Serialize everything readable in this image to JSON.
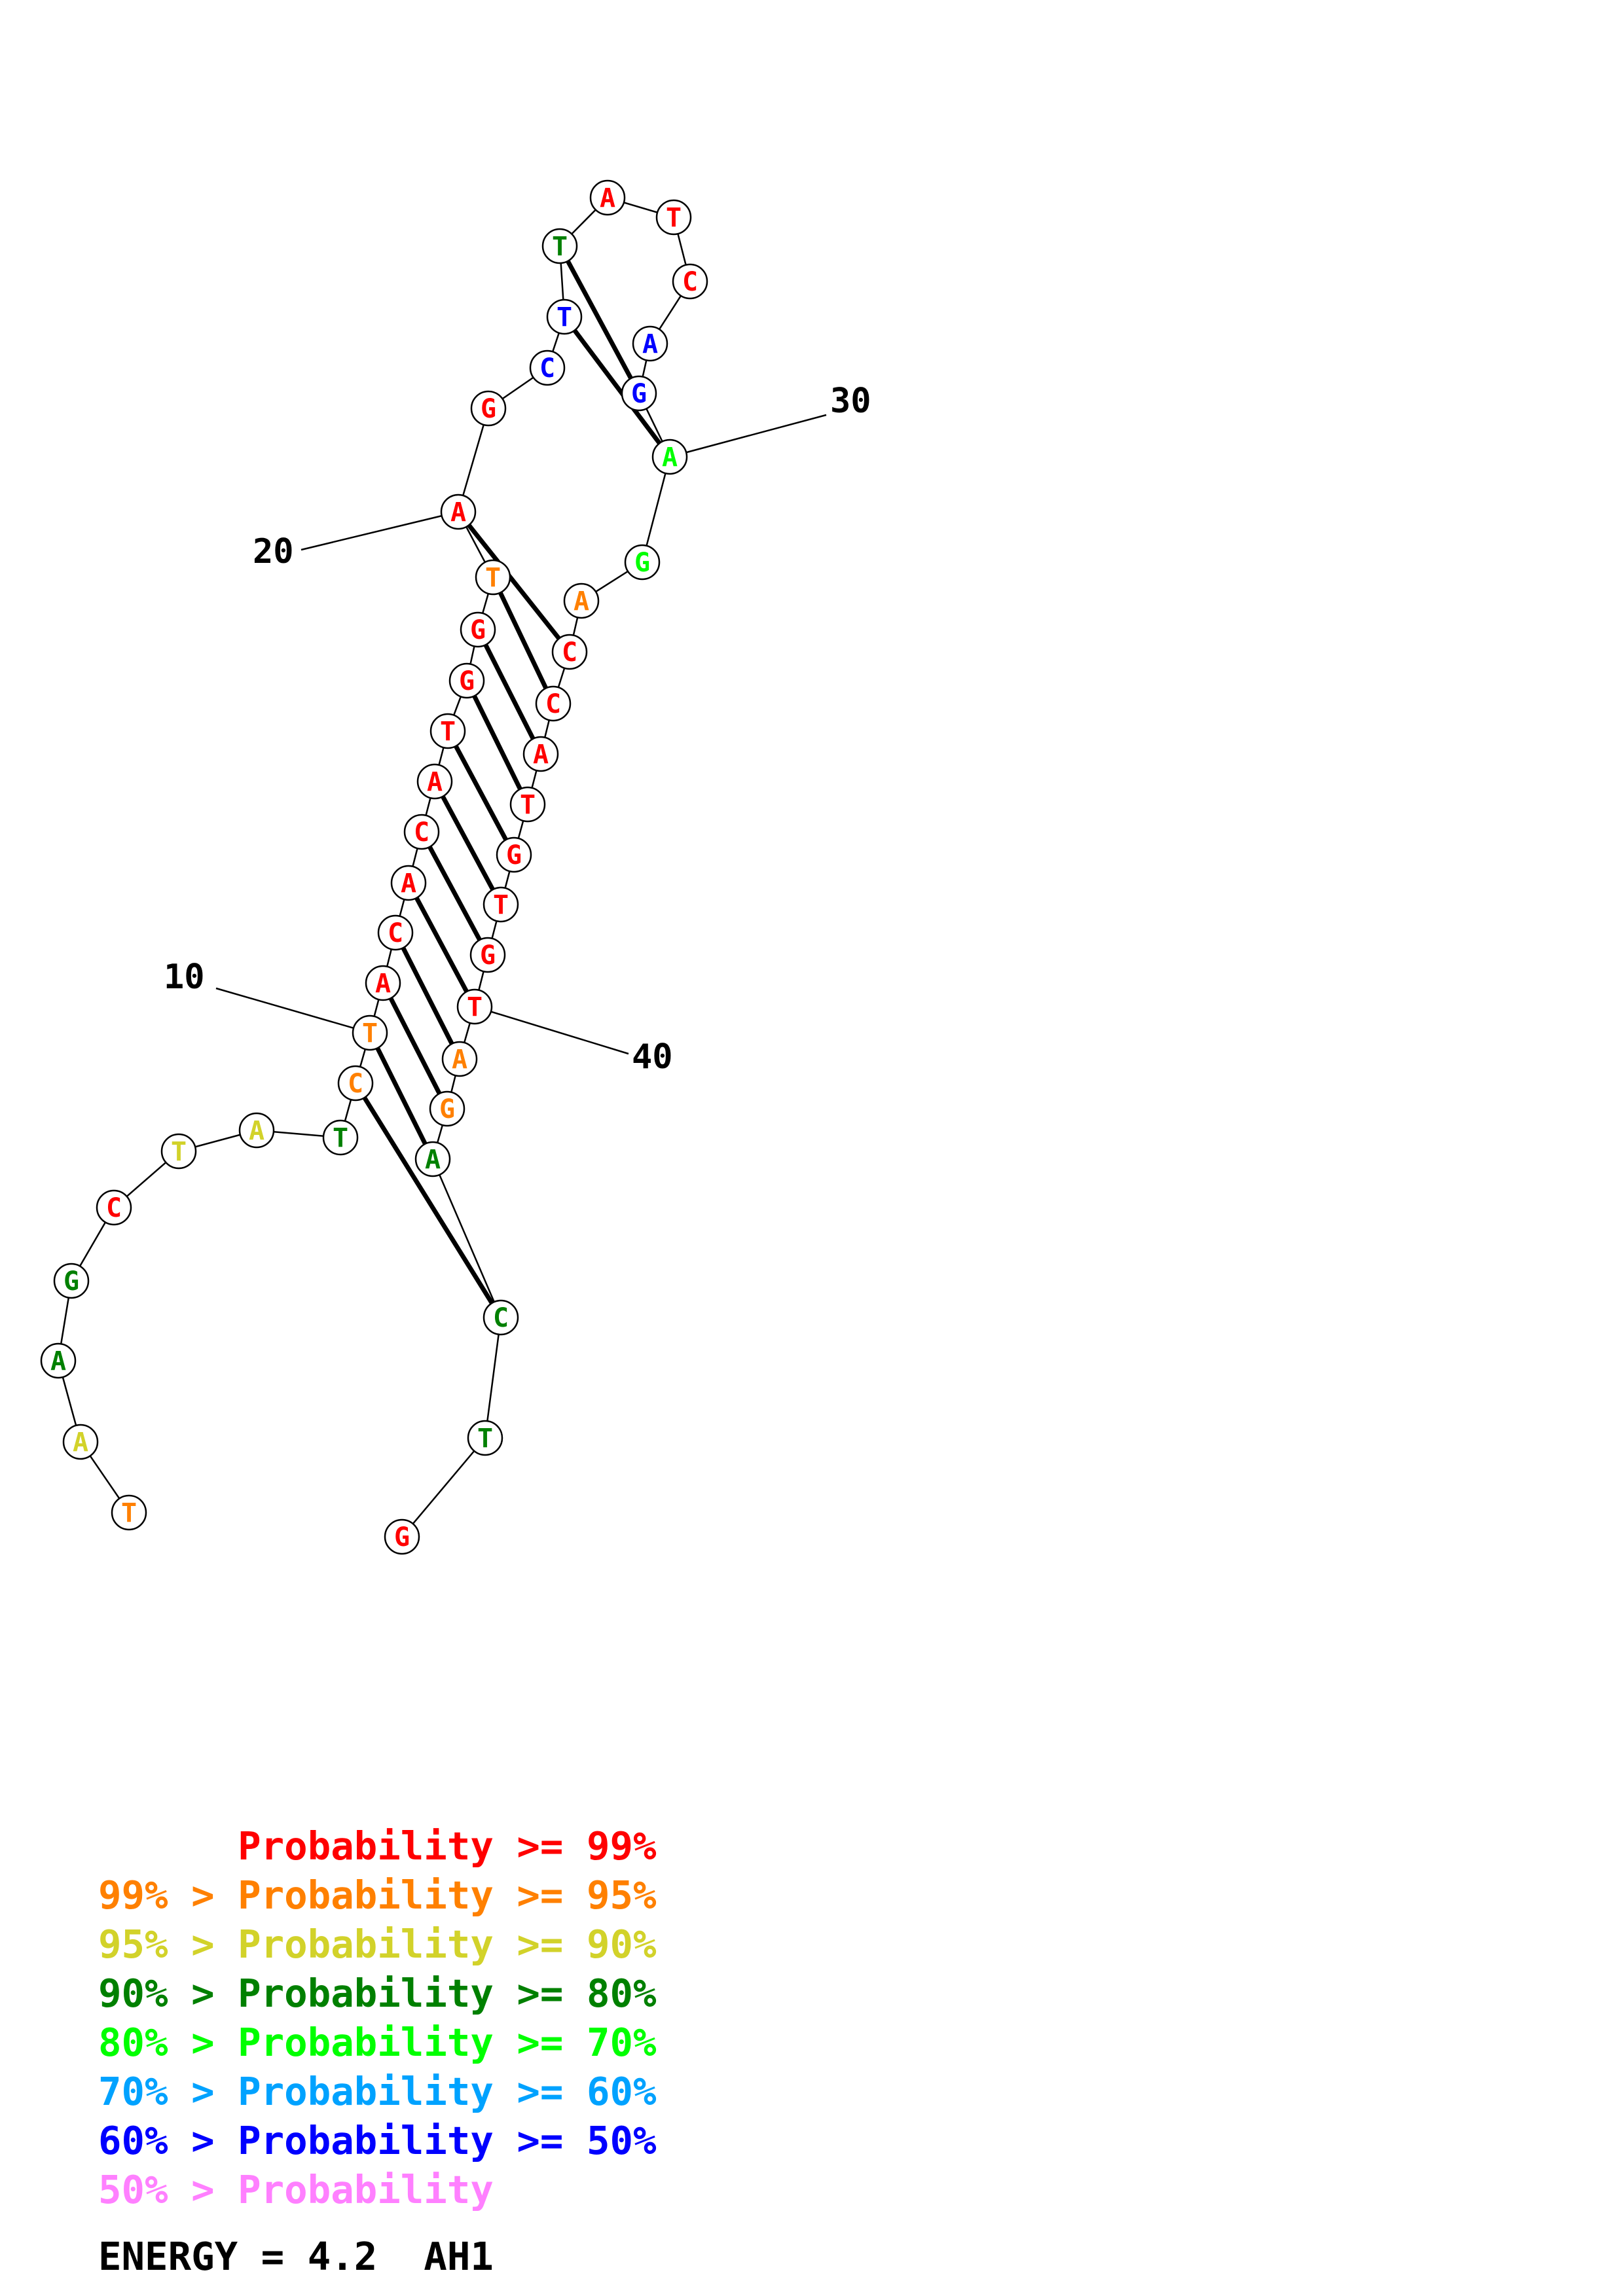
{
  "colors": {
    "p99": "#ff0000",
    "p95": "#ff8000",
    "p90": "#d2d22a",
    "p80": "#008000",
    "p70": "#00ff00",
    "p60": "#00a2ff",
    "p50": "#0000ff",
    "plow": "#ff80ff"
  },
  "sequence": [
    {
      "base": "T",
      "prob": "p95"
    },
    {
      "base": "A",
      "prob": "p90"
    },
    {
      "base": "A",
      "prob": "p80"
    },
    {
      "base": "G",
      "prob": "p80"
    },
    {
      "base": "C",
      "prob": "p99"
    },
    {
      "base": "T",
      "prob": "p90"
    },
    {
      "base": "A",
      "prob": "p90"
    },
    {
      "base": "T",
      "prob": "p80"
    },
    {
      "base": "C",
      "prob": "p95"
    },
    {
      "base": "T",
      "prob": "p95"
    },
    {
      "base": "A",
      "prob": "p99"
    },
    {
      "base": "C",
      "prob": "p99"
    },
    {
      "base": "A",
      "prob": "p99"
    },
    {
      "base": "C",
      "prob": "p99"
    },
    {
      "base": "A",
      "prob": "p99"
    },
    {
      "base": "T",
      "prob": "p99"
    },
    {
      "base": "G",
      "prob": "p99"
    },
    {
      "base": "G",
      "prob": "p99"
    },
    {
      "base": "T",
      "prob": "p95"
    },
    {
      "base": "A",
      "prob": "p99"
    },
    {
      "base": "G",
      "prob": "p99"
    },
    {
      "base": "C",
      "prob": "p50"
    },
    {
      "base": "T",
      "prob": "p50"
    },
    {
      "base": "T",
      "prob": "p80"
    },
    {
      "base": "A",
      "prob": "p99"
    },
    {
      "base": "T",
      "prob": "p99"
    },
    {
      "base": "C",
      "prob": "p99"
    },
    {
      "base": "A",
      "prob": "p50"
    },
    {
      "base": "G",
      "prob": "p50"
    },
    {
      "base": "A",
      "prob": "p70"
    },
    {
      "base": "G",
      "prob": "p70"
    },
    {
      "base": "A",
      "prob": "p95"
    },
    {
      "base": "C",
      "prob": "p99"
    },
    {
      "base": "C",
      "prob": "p99"
    },
    {
      "base": "A",
      "prob": "p99"
    },
    {
      "base": "T",
      "prob": "p99"
    },
    {
      "base": "G",
      "prob": "p99"
    },
    {
      "base": "T",
      "prob": "p99"
    },
    {
      "base": "G",
      "prob": "p99"
    },
    {
      "base": "T",
      "prob": "p99"
    },
    {
      "base": "A",
      "prob": "p95"
    },
    {
      "base": "G",
      "prob": "p95"
    },
    {
      "base": "A",
      "prob": "p80"
    },
    {
      "base": "C",
      "prob": "p80"
    },
    {
      "base": "T",
      "prob": "p80"
    },
    {
      "base": "G",
      "prob": "p99"
    }
  ],
  "pairs": [
    [
      8,
      43
    ],
    [
      9,
      42
    ],
    [
      10,
      41
    ],
    [
      11,
      40
    ],
    [
      12,
      39
    ],
    [
      13,
      38
    ],
    [
      14,
      37
    ],
    [
      15,
      36
    ],
    [
      16,
      35
    ],
    [
      17,
      34
    ],
    [
      18,
      33
    ],
    [
      19,
      32
    ],
    [
      22,
      29
    ],
    [
      23,
      28
    ]
  ],
  "position_labels": [
    {
      "index": 10,
      "text": "10"
    },
    {
      "index": 20,
      "text": "20"
    },
    {
      "index": 30,
      "text": "30"
    },
    {
      "index": 40,
      "text": "40"
    }
  ],
  "legend": [
    {
      "text": "      Probability >= 99%",
      "color": "p99"
    },
    {
      "text": "99% > Probability >= 95%",
      "color": "p95"
    },
    {
      "text": "95% > Probability >= 90%",
      "color": "p90"
    },
    {
      "text": "90% > Probability >= 80%",
      "color": "p80"
    },
    {
      "text": "80% > Probability >= 70%",
      "color": "p70"
    },
    {
      "text": "70% > Probability >= 60%",
      "color": "p60"
    },
    {
      "text": "60% > Probability >= 50%",
      "color": "p50"
    },
    {
      "text": "50% > Probability",
      "color": "plow"
    }
  ],
  "energy_line": "ENERGY = 4.2  AH1"
}
